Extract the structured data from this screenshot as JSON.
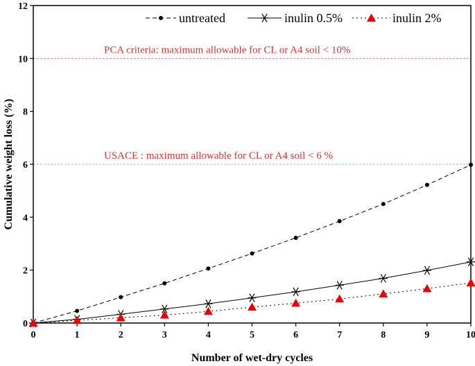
{
  "chart_data": {
    "type": "line",
    "xlabel": "Number of wet-dry cycles",
    "ylabel": "Cumulative weight loss (%)",
    "xlim": [
      0,
      10
    ],
    "ylim": [
      0,
      12
    ],
    "x_ticks": [
      0,
      1,
      2,
      3,
      4,
      5,
      6,
      7,
      8,
      9,
      10
    ],
    "y_ticks": [
      0,
      2,
      4,
      6,
      8,
      10,
      12
    ],
    "x": [
      0,
      1,
      2,
      3,
      4,
      5,
      6,
      7,
      8,
      9,
      10
    ],
    "series": [
      {
        "name": "untreated",
        "marker": "circle",
        "line": "dashed",
        "color": "#000000",
        "values": [
          0,
          0.46,
          0.98,
          1.5,
          2.06,
          2.63,
          3.22,
          3.85,
          4.5,
          5.22,
          5.98
        ]
      },
      {
        "name": "inulin 0.5%",
        "marker": "asterisk",
        "line": "solid",
        "color": "#000000",
        "values": [
          0,
          0.14,
          0.33,
          0.53,
          0.73,
          0.95,
          1.18,
          1.43,
          1.69,
          1.99,
          2.31
        ]
      },
      {
        "name": "inulin 2%",
        "marker": "triangle",
        "line": "dotted",
        "color": "#ee0000",
        "values": [
          0,
          0.1,
          0.2,
          0.3,
          0.44,
          0.6,
          0.75,
          0.91,
          1.1,
          1.3,
          1.52
        ]
      }
    ],
    "reference_lines": [
      {
        "y": 10,
        "label": "PCA criteria: maximum allowable for CL or A4 soil < 10%",
        "color": "#e8808a"
      },
      {
        "y": 6,
        "label": "USACE : maximum allowable for CL or A4 soil < 6 %",
        "color": "#90bfe6"
      }
    ],
    "annotation_color": "#e03030",
    "legend_position": "top-right",
    "grid": false
  }
}
